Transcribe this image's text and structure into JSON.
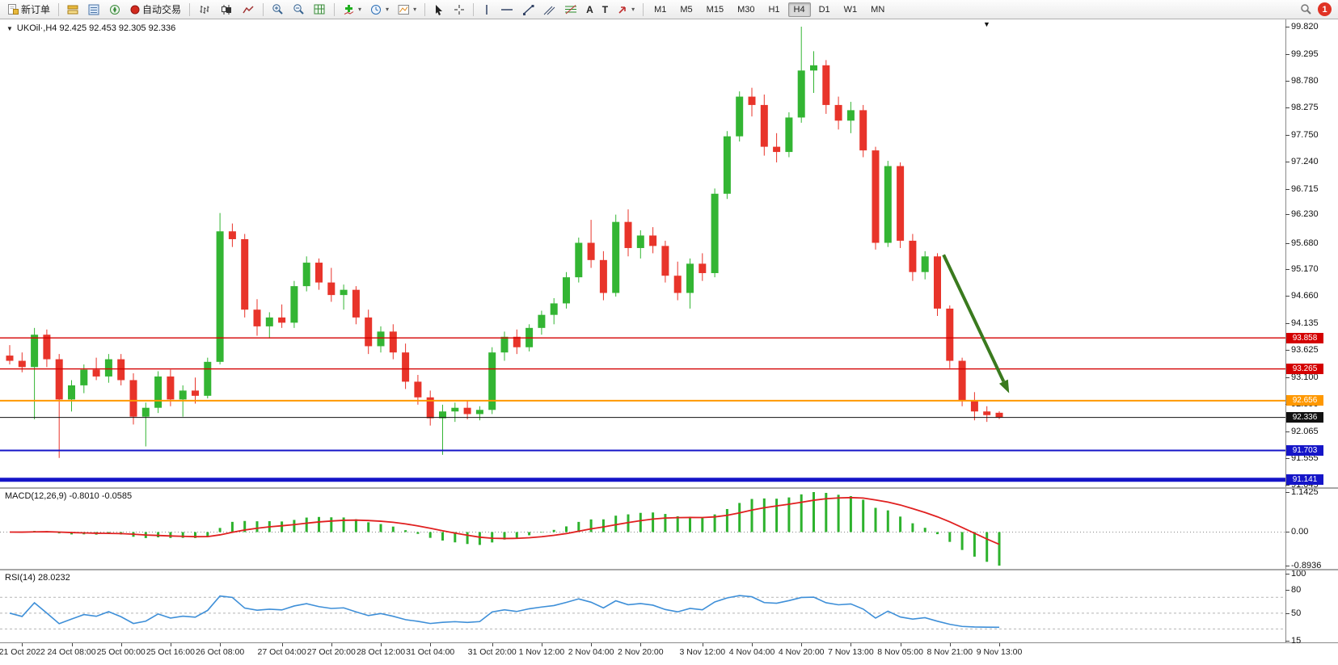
{
  "toolbar": {
    "new_order": "新订单",
    "auto_trading": "自动交易",
    "text_tool": "A",
    "label_tool": "T",
    "timeframes": [
      "M1",
      "M5",
      "M15",
      "M30",
      "H1",
      "H4",
      "D1",
      "W1",
      "MN"
    ],
    "active_timeframe": "H4",
    "notification_count": "1"
  },
  "chart": {
    "symbol_dropdown_glyph": "▼",
    "scroll_marker_glyph": "▼",
    "title": "UKOil·,H4  92.425 92.453 92.305 92.336",
    "price_axis_ticks": [
      "99.820",
      "99.295",
      "98.780",
      "98.275",
      "97.750",
      "97.240",
      "96.715",
      "96.230",
      "95.680",
      "95.170",
      "94.660",
      "94.135",
      "93.625",
      "93.100",
      "92.590",
      "92.065",
      "91.555",
      "91.045"
    ],
    "levels": [
      {
        "label": "93.858",
        "value": 93.858,
        "color": "#d40000",
        "width": 1.4
      },
      {
        "label": "93.265",
        "value": 93.265,
        "color": "#d40000",
        "width": 1.4
      },
      {
        "label": "92.656",
        "value": 92.656,
        "color": "#ff9800",
        "width": 2
      },
      {
        "label": "92.336",
        "value": 92.336,
        "color": "#111111",
        "width": 1
      },
      {
        "label": "91.703",
        "value": 91.703,
        "color": "#1515c8",
        "width": 2
      },
      {
        "label": "91.141",
        "value": 91.141,
        "color": "#1515c8",
        "width": 5
      }
    ],
    "time_axis": [
      {
        "label": "21 Oct 2022",
        "index": 1
      },
      {
        "label": "24 Oct 08:00",
        "index": 5
      },
      {
        "label": "25 Oct 00:00",
        "index": 9
      },
      {
        "label": "25 Oct 16:00",
        "index": 13
      },
      {
        "label": "26 Oct 08:00",
        "index": 17
      },
      {
        "label": "27 Oct 04:00",
        "index": 22
      },
      {
        "label": "27 Oct 20:00",
        "index": 26
      },
      {
        "label": "28 Oct 12:00",
        "index": 30
      },
      {
        "label": "31 Oct 04:00",
        "index": 34
      },
      {
        "label": "31 Oct 20:00",
        "index": 39
      },
      {
        "label": "1 Nov 12:00",
        "index": 43
      },
      {
        "label": "2 Nov 04:00",
        "index": 47
      },
      {
        "label": "2 Nov 20:00",
        "index": 51
      },
      {
        "label": "3 Nov 12:00",
        "index": 56
      },
      {
        "label": "4 Nov 04:00",
        "index": 60
      },
      {
        "label": "4 Nov 20:00",
        "index": 64
      },
      {
        "label": "7 Nov 13:00",
        "index": 68
      },
      {
        "label": "8 Nov 05:00",
        "index": 72
      },
      {
        "label": "8 Nov 21:00",
        "index": 76
      },
      {
        "label": "9 Nov 13:00",
        "index": 80
      }
    ]
  },
  "chart_data": {
    "type": "candlestick",
    "symbol": "UKOil",
    "period": "H4",
    "quote": {
      "open": "92.425",
      "high": "92.453",
      "low": "92.305",
      "close": "92.336"
    },
    "price_range": [
      91.045,
      99.82
    ],
    "colors": {
      "up": "#33b533",
      "down": "#e8342a",
      "macd_hist": "#2db22d",
      "macd_signal": "#e02020",
      "rsi_line": "#3e8fd8"
    },
    "candles": [
      [
        93.52,
        93.72,
        93.35,
        93.42
      ],
      [
        93.42,
        93.58,
        93.2,
        93.3
      ],
      [
        93.3,
        94.05,
        92.3,
        93.92
      ],
      [
        93.92,
        94.02,
        93.3,
        93.45
      ],
      [
        93.45,
        93.55,
        91.56,
        92.68
      ],
      [
        92.68,
        93.05,
        92.45,
        92.95
      ],
      [
        92.95,
        93.35,
        92.8,
        93.25
      ],
      [
        93.25,
        93.48,
        93.05,
        93.12
      ],
      [
        93.12,
        93.55,
        93.0,
        93.45
      ],
      [
        93.45,
        93.55,
        92.95,
        93.05
      ],
      [
        93.05,
        93.18,
        92.2,
        92.35
      ],
      [
        92.35,
        92.62,
        91.78,
        92.52
      ],
      [
        92.52,
        93.22,
        92.42,
        93.12
      ],
      [
        93.12,
        93.25,
        92.55,
        92.68
      ],
      [
        92.68,
        92.95,
        92.35,
        92.85
      ],
      [
        92.85,
        93.1,
        92.6,
        92.75
      ],
      [
        92.75,
        93.48,
        92.7,
        93.4
      ],
      [
        93.4,
        96.25,
        93.35,
        95.9
      ],
      [
        95.9,
        96.05,
        95.6,
        95.75
      ],
      [
        95.75,
        95.85,
        94.25,
        94.4
      ],
      [
        94.4,
        94.6,
        93.9,
        94.08
      ],
      [
        94.08,
        94.35,
        93.85,
        94.25
      ],
      [
        94.25,
        94.5,
        94.05,
        94.15
      ],
      [
        94.15,
        94.95,
        94.05,
        94.85
      ],
      [
        94.85,
        95.42,
        94.75,
        95.3
      ],
      [
        95.3,
        95.38,
        94.78,
        94.92
      ],
      [
        94.92,
        95.2,
        94.55,
        94.68
      ],
      [
        94.68,
        94.88,
        94.4,
        94.78
      ],
      [
        94.78,
        94.85,
        94.12,
        94.25
      ],
      [
        94.25,
        94.4,
        93.55,
        93.7
      ],
      [
        93.7,
        94.08,
        93.58,
        93.98
      ],
      [
        93.98,
        94.12,
        93.45,
        93.58
      ],
      [
        93.58,
        93.75,
        92.88,
        93.02
      ],
      [
        93.02,
        93.15,
        92.58,
        92.72
      ],
      [
        92.72,
        92.85,
        92.18,
        92.32
      ],
      [
        92.32,
        92.58,
        91.62,
        92.45
      ],
      [
        92.45,
        92.62,
        92.25,
        92.52
      ],
      [
        92.52,
        92.65,
        92.3,
        92.4
      ],
      [
        92.4,
        92.55,
        92.28,
        92.48
      ],
      [
        92.48,
        93.68,
        92.4,
        93.58
      ],
      [
        93.58,
        93.98,
        93.42,
        93.88
      ],
      [
        93.88,
        94.02,
        93.55,
        93.68
      ],
      [
        93.68,
        94.12,
        93.6,
        94.05
      ],
      [
        94.05,
        94.38,
        93.92,
        94.3
      ],
      [
        94.3,
        94.62,
        94.12,
        94.52
      ],
      [
        94.52,
        95.12,
        94.42,
        95.02
      ],
      [
        95.02,
        95.78,
        94.92,
        95.68
      ],
      [
        95.68,
        96.12,
        95.2,
        95.35
      ],
      [
        95.35,
        95.52,
        94.58,
        94.72
      ],
      [
        94.72,
        96.22,
        94.65,
        96.08
      ],
      [
        96.08,
        96.32,
        95.42,
        95.58
      ],
      [
        95.58,
        95.92,
        95.38,
        95.82
      ],
      [
        95.82,
        95.98,
        95.48,
        95.62
      ],
      [
        95.62,
        95.72,
        94.92,
        95.05
      ],
      [
        95.05,
        95.32,
        94.58,
        94.72
      ],
      [
        94.72,
        95.38,
        94.42,
        95.28
      ],
      [
        95.28,
        95.48,
        94.95,
        95.1
      ],
      [
        95.1,
        96.72,
        95.02,
        96.62
      ],
      [
        96.62,
        97.82,
        96.52,
        97.72
      ],
      [
        97.72,
        98.58,
        97.62,
        98.48
      ],
      [
        98.48,
        98.65,
        98.1,
        98.32
      ],
      [
        98.32,
        98.52,
        97.35,
        97.52
      ],
      [
        97.52,
        97.78,
        97.22,
        97.42
      ],
      [
        97.42,
        98.18,
        97.32,
        98.08
      ],
      [
        98.08,
        99.82,
        97.98,
        98.98
      ],
      [
        98.98,
        99.35,
        98.55,
        99.08
      ],
      [
        99.08,
        99.18,
        98.15,
        98.32
      ],
      [
        98.32,
        98.48,
        97.85,
        98.02
      ],
      [
        98.02,
        98.38,
        97.78,
        98.22
      ],
      [
        98.22,
        98.32,
        97.32,
        97.45
      ],
      [
        97.45,
        97.52,
        95.55,
        95.68
      ],
      [
        95.68,
        97.25,
        95.6,
        97.15
      ],
      [
        97.15,
        97.22,
        95.58,
        95.72
      ],
      [
        95.72,
        95.85,
        94.95,
        95.12
      ],
      [
        95.12,
        95.52,
        94.98,
        95.42
      ],
      [
        95.42,
        95.48,
        94.28,
        94.42
      ],
      [
        94.42,
        94.48,
        93.28,
        93.42
      ],
      [
        93.42,
        93.48,
        92.55,
        92.65
      ],
      [
        92.65,
        92.82,
        92.28,
        92.45
      ],
      [
        92.45,
        92.55,
        92.25,
        92.38
      ],
      [
        92.425,
        92.453,
        92.305,
        92.336
      ]
    ],
    "indicators": {
      "macd": {
        "display_label": "MACD(12,26,9) -0.8010 -0.0585",
        "params": [
          12,
          26,
          9
        ],
        "main_value": -0.801,
        "signal_value": -0.0585,
        "scale": [
          "1.1425",
          "0.00",
          "-0.8936"
        ]
      },
      "rsi": {
        "display_label": "RSI(14) 28.0232",
        "period": 14,
        "value": 28.0232,
        "scale": [
          "100",
          "80",
          "50",
          "15"
        ],
        "guide_levels": [
          70,
          50,
          30
        ]
      }
    },
    "annotations": [
      {
        "type": "arrow",
        "color": "#3a7a1e",
        "stroke_width": 4,
        "from": {
          "index": 75.5,
          "price": 95.45
        },
        "to": {
          "index": 80.8,
          "price": 92.8
        }
      }
    ]
  }
}
